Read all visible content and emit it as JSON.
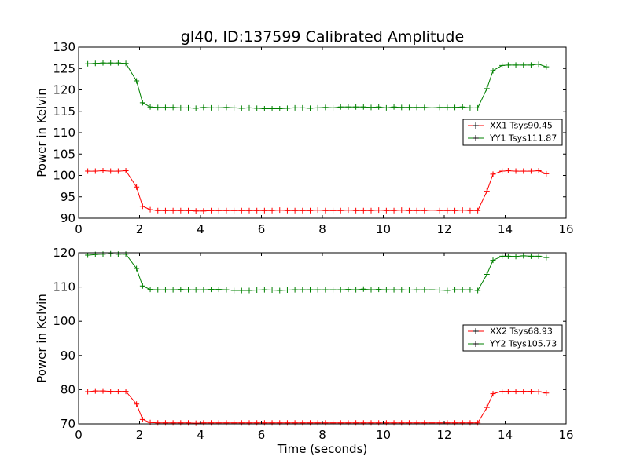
{
  "figure": {
    "title": "gl40, ID:137599 Calibrated Amplitude",
    "xlabel": "Time (seconds)"
  },
  "chart_data": [
    {
      "type": "line",
      "ylabel": "Power in Kelvin",
      "xlim": [
        0,
        16
      ],
      "ylim": [
        90,
        130
      ],
      "xticks": [
        "0",
        "2",
        "4",
        "6",
        "8",
        "10",
        "12",
        "14",
        "16"
      ],
      "yticks": [
        "90",
        "95",
        "100",
        "105",
        "110",
        "115",
        "120",
        "125",
        "130"
      ],
      "legend": "right",
      "x": [
        0.3,
        0.55,
        0.8,
        1.05,
        1.3,
        1.55,
        1.9,
        2.1,
        2.35,
        2.6,
        2.85,
        3.1,
        3.35,
        3.6,
        3.85,
        4.1,
        4.35,
        4.6,
        4.85,
        5.1,
        5.35,
        5.6,
        5.85,
        6.1,
        6.35,
        6.6,
        6.85,
        7.1,
        7.35,
        7.6,
        7.85,
        8.1,
        8.35,
        8.6,
        8.85,
        9.1,
        9.35,
        9.6,
        9.85,
        10.1,
        10.35,
        10.6,
        10.85,
        11.1,
        11.35,
        11.6,
        11.85,
        12.1,
        12.35,
        12.6,
        12.85,
        13.1,
        13.4,
        13.6,
        13.9,
        14.1,
        14.35,
        14.6,
        14.85,
        15.1,
        15.35
      ],
      "series": [
        {
          "name": "XX1 Tsys90.45",
          "color": "#ff0000",
          "values": [
            101.0,
            101.0,
            101.1,
            101.0,
            101.0,
            101.1,
            97.3,
            92.8,
            92.0,
            91.8,
            91.8,
            91.8,
            91.8,
            91.8,
            91.7,
            91.7,
            91.8,
            91.8,
            91.8,
            91.8,
            91.8,
            91.8,
            91.8,
            91.8,
            91.8,
            91.9,
            91.8,
            91.8,
            91.8,
            91.8,
            91.9,
            91.8,
            91.8,
            91.8,
            91.9,
            91.8,
            91.8,
            91.8,
            91.9,
            91.8,
            91.8,
            91.9,
            91.8,
            91.8,
            91.8,
            91.9,
            91.8,
            91.8,
            91.8,
            91.9,
            91.8,
            91.8,
            96.3,
            100.3,
            101.0,
            101.1,
            101.0,
            101.0,
            101.0,
            101.1,
            100.4
          ]
        },
        {
          "name": "YY1 Tsys111.87",
          "color": "#008000",
          "values": [
            126.1,
            126.2,
            126.3,
            126.3,
            126.3,
            126.2,
            122.1,
            117.0,
            116.0,
            115.9,
            115.9,
            115.9,
            115.8,
            115.8,
            115.7,
            115.9,
            115.8,
            115.8,
            115.9,
            115.8,
            115.7,
            115.8,
            115.7,
            115.6,
            115.6,
            115.6,
            115.7,
            115.8,
            115.8,
            115.7,
            115.8,
            115.9,
            115.8,
            116.0,
            116.0,
            116.0,
            116.0,
            115.9,
            116.0,
            115.8,
            116.0,
            115.9,
            115.9,
            115.9,
            115.9,
            115.8,
            115.9,
            115.9,
            115.9,
            116.0,
            115.8,
            115.8,
            120.3,
            124.5,
            125.7,
            125.8,
            125.8,
            125.8,
            125.8,
            126.0,
            125.4
          ]
        }
      ]
    },
    {
      "type": "line",
      "ylabel": "Power in Kelvin",
      "xlim": [
        0,
        16
      ],
      "ylim": [
        70,
        120
      ],
      "xticks": [
        "0",
        "2",
        "4",
        "6",
        "8",
        "10",
        "12",
        "14",
        "16"
      ],
      "yticks": [
        "70",
        "80",
        "90",
        "100",
        "110",
        "120"
      ],
      "legend": "right",
      "x": [
        0.3,
        0.55,
        0.8,
        1.05,
        1.3,
        1.55,
        1.9,
        2.1,
        2.35,
        2.6,
        2.85,
        3.1,
        3.35,
        3.6,
        3.85,
        4.1,
        4.35,
        4.6,
        4.85,
        5.1,
        5.35,
        5.6,
        5.85,
        6.1,
        6.35,
        6.6,
        6.85,
        7.1,
        7.35,
        7.6,
        7.85,
        8.1,
        8.35,
        8.6,
        8.85,
        9.1,
        9.35,
        9.6,
        9.85,
        10.1,
        10.35,
        10.6,
        10.85,
        11.1,
        11.35,
        11.6,
        11.85,
        12.1,
        12.35,
        12.6,
        12.85,
        13.1,
        13.4,
        13.6,
        13.9,
        14.1,
        14.35,
        14.6,
        14.85,
        15.1,
        15.35
      ],
      "series": [
        {
          "name": "XX2 Tsys68.93",
          "color": "#ff0000",
          "values": [
            79.4,
            79.6,
            79.6,
            79.5,
            79.5,
            79.5,
            75.8,
            71.3,
            70.4,
            70.3,
            70.3,
            70.3,
            70.3,
            70.3,
            70.2,
            70.3,
            70.3,
            70.3,
            70.3,
            70.3,
            70.3,
            70.3,
            70.3,
            70.3,
            70.3,
            70.3,
            70.3,
            70.3,
            70.3,
            70.3,
            70.3,
            70.3,
            70.3,
            70.3,
            70.3,
            70.3,
            70.3,
            70.3,
            70.3,
            70.3,
            70.3,
            70.3,
            70.3,
            70.3,
            70.3,
            70.3,
            70.3,
            70.3,
            70.3,
            70.3,
            70.3,
            70.3,
            74.8,
            78.8,
            79.5,
            79.5,
            79.5,
            79.5,
            79.5,
            79.4,
            79.0
          ]
        },
        {
          "name": "YY2 Tsys105.73",
          "color": "#008000",
          "values": [
            119.3,
            119.5,
            119.6,
            119.7,
            119.6,
            119.6,
            115.4,
            110.3,
            109.3,
            109.2,
            109.2,
            109.2,
            109.3,
            109.2,
            109.2,
            109.2,
            109.3,
            109.3,
            109.2,
            109.0,
            109.0,
            109.0,
            109.1,
            109.2,
            109.1,
            109.0,
            109.1,
            109.2,
            109.2,
            109.2,
            109.2,
            109.2,
            109.2,
            109.2,
            109.3,
            109.2,
            109.4,
            109.2,
            109.3,
            109.2,
            109.2,
            109.2,
            109.1,
            109.2,
            109.2,
            109.2,
            109.1,
            109.0,
            109.2,
            109.2,
            109.2,
            109.0,
            113.7,
            117.8,
            119.0,
            119.0,
            118.9,
            119.1,
            119.0,
            119.0,
            118.6
          ]
        }
      ]
    }
  ]
}
